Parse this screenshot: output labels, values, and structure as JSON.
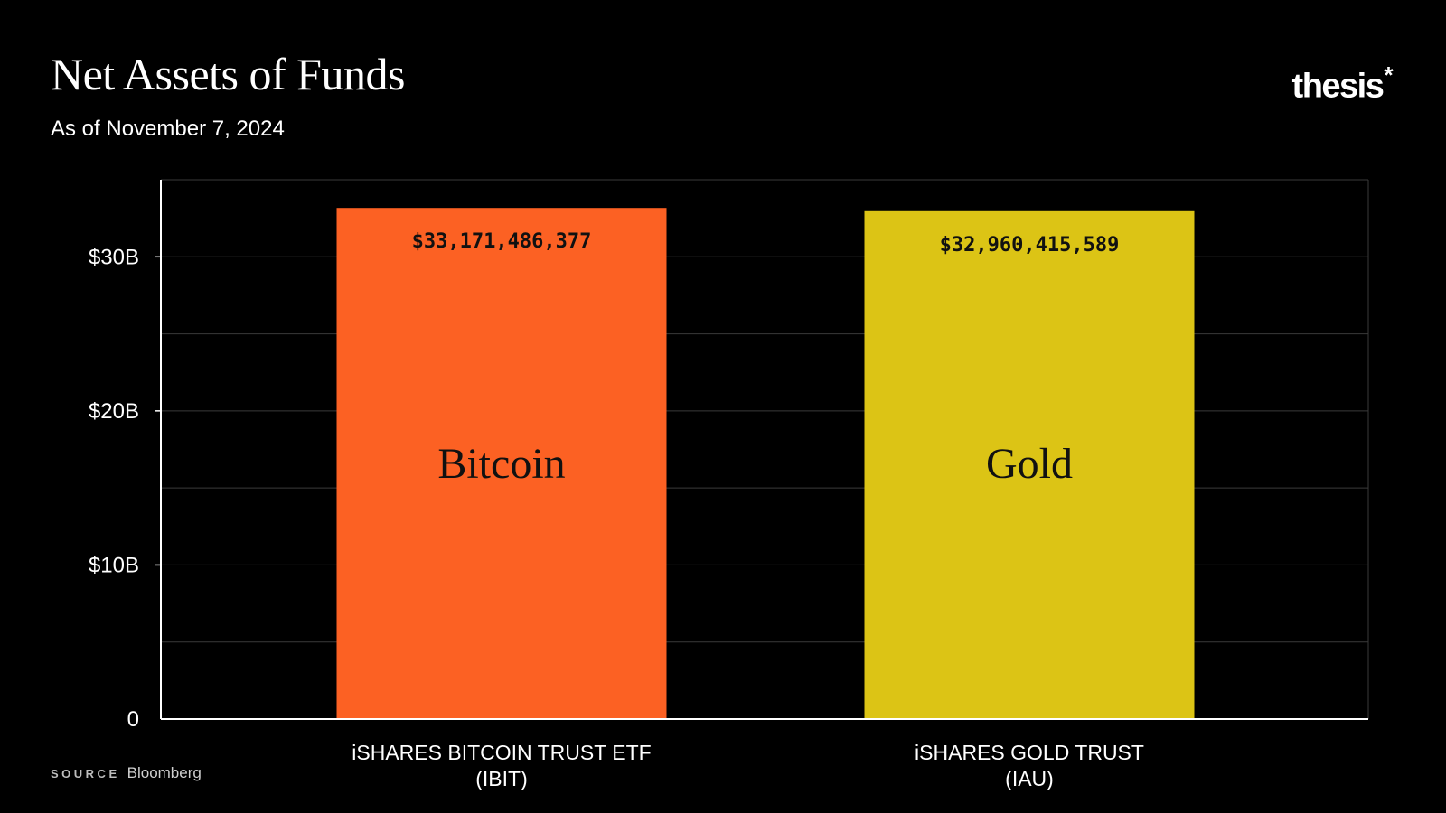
{
  "header": {
    "title": "Net Assets of Funds",
    "subtitle": "As of November 7, 2024",
    "brand_name": "thesis",
    "brand_mark": "*"
  },
  "footer": {
    "source_label": "SOURCE",
    "source_value": "Bloomberg"
  },
  "chart_data": {
    "type": "bar",
    "categories": [
      [
        "iSHARES BITCOIN TRUST ETF",
        "(IBIT)"
      ],
      [
        "iSHARES GOLD TRUST",
        "(IAU)"
      ]
    ],
    "values": [
      33171486377,
      32960415589
    ],
    "value_labels": [
      "$33,171,486,377",
      "$32,960,415,589"
    ],
    "bar_labels": [
      "Bitcoin",
      "Gold"
    ],
    "bar_colors": [
      "#fc6123",
      "#dcc415"
    ],
    "yticks": [
      0,
      10000000000,
      20000000000,
      30000000000
    ],
    "ytick_labels": [
      "0",
      "$10B",
      "$20B",
      "$30B"
    ],
    "ylim": [
      0,
      35000000000
    ],
    "minor_gridlines": [
      5000000000,
      15000000000,
      25000000000
    ],
    "grid": true,
    "background": "#000000",
    "gridline_color": "#3a3a3a"
  }
}
